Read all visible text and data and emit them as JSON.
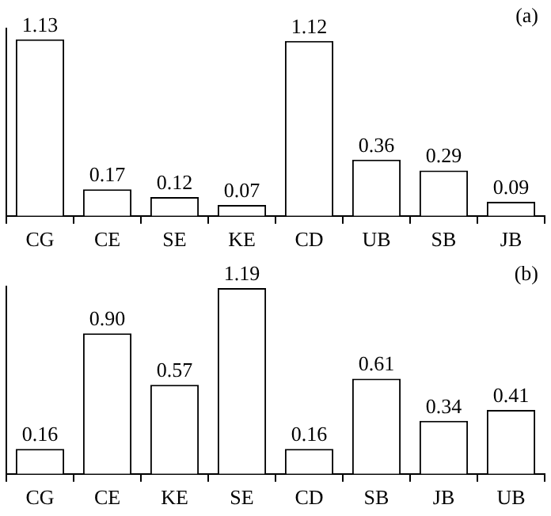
{
  "chart_data": [
    {
      "type": "bar",
      "categories": [
        "CG",
        "CE",
        "SE",
        "KE",
        "CD",
        "UB",
        "SB",
        "JB"
      ],
      "values": [
        1.13,
        0.17,
        0.12,
        0.07,
        1.12,
        0.36,
        0.29,
        0.09
      ],
      "value_labels": [
        "1.13",
        "0.17",
        "0.12",
        "0.07",
        "1.12",
        "0.36",
        "0.29",
        "0.09"
      ],
      "color": "#ffffff",
      "annotations": [
        "(a)"
      ],
      "legend": false,
      "grid": false
    },
    {
      "type": "bar",
      "categories": [
        "CG",
        "CE",
        "KE",
        "SE",
        "CD",
        "SB",
        "JB",
        "UB"
      ],
      "values": [
        0.16,
        0.9,
        0.57,
        1.19,
        0.16,
        0.61,
        0.34,
        0.41
      ],
      "value_labels": [
        "0.16",
        "0.90",
        "0.57",
        "1.19",
        "0.16",
        "0.61",
        "0.34",
        "0.41"
      ],
      "color": "#ffffff",
      "annotations": [
        "(b)"
      ],
      "legend": false,
      "grid": false
    }
  ]
}
